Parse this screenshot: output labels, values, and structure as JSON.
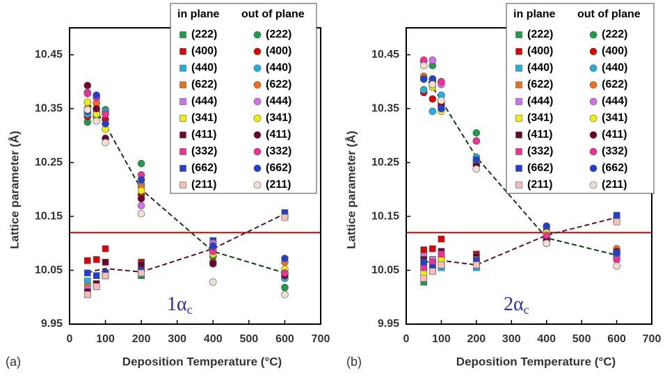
{
  "chart_data": [
    {
      "type": "scatter",
      "panel_label": "(a)",
      "xlabel": "Deposition Temperature (°C)",
      "ylabel": "Lattice parameter (Å)",
      "annotation": {
        "text": "1α",
        "sub": "c"
      },
      "legend_headers": [
        "in plane",
        "out of plane"
      ],
      "xlim": [
        0,
        700
      ],
      "xticks": [
        0,
        100,
        200,
        300,
        400,
        500,
        600,
        700
      ],
      "ylim": [
        9.95,
        10.5
      ],
      "yticks": [
        9.95,
        10.05,
        10.15,
        10.25,
        10.35,
        10.45
      ],
      "x": [
        50,
        75,
        100,
        200,
        400,
        600
      ],
      "reference_line": {
        "value": 10.12,
        "color": "#c00000"
      },
      "trends": [
        {
          "color": "#0b3d0b",
          "values": [
            10.36,
            10.345,
            10.32,
            10.2,
            10.085,
            10.045
          ]
        },
        {
          "color": "#5a1030",
          "values": [
            10.045,
            10.05,
            10.053,
            10.047,
            10.09,
            10.155
          ]
        }
      ],
      "series": [
        {
          "name": "(222)",
          "color": "#1a9e4a",
          "marker": "square",
          "values": [
            10.02,
            10.025,
            10.04,
            10.04,
            10.095,
            10.15
          ]
        },
        {
          "name": "(400)",
          "color": "#e00000",
          "marker": "square",
          "values": [
            10.068,
            10.07,
            10.09,
            10.065,
            10.095,
            10.15
          ]
        },
        {
          "name": "(440)",
          "color": "#1fb0e0",
          "marker": "square",
          "values": [
            10.03,
            10.025,
            10.04,
            10.045,
            10.095,
            10.15
          ]
        },
        {
          "name": "(622)",
          "color": "#f07020",
          "marker": "square",
          "values": [
            10.02,
            10.025,
            10.04,
            10.045,
            10.1,
            10.15
          ]
        },
        {
          "name": "(444)",
          "color": "#d070f0",
          "marker": "square",
          "values": [
            10.015,
            10.02,
            10.04,
            10.05,
            10.1,
            10.15
          ]
        },
        {
          "name": "(341)",
          "color": "#f0f000",
          "marker": "square",
          "values": [
            10.01,
            10.02,
            10.04,
            10.05,
            10.09,
            10.15
          ]
        },
        {
          "name": "(411)",
          "color": "#700030",
          "marker": "square",
          "values": [
            10.01,
            10.025,
            10.065,
            10.06,
            10.095,
            10.15
          ]
        },
        {
          "name": "(332)",
          "color": "#f03098",
          "marker": "square",
          "values": [
            10.005,
            10.02,
            10.045,
            10.05,
            10.1,
            10.15
          ]
        },
        {
          "name": "(662)",
          "color": "#2040d0",
          "marker": "square",
          "values": [
            10.045,
            10.04,
            10.045,
            10.05,
            10.105,
            10.157
          ]
        },
        {
          "name": "(211)",
          "color": "#f5c0b8",
          "marker": "square",
          "values": [
            10.005,
            10.02,
            10.04,
            10.045,
            10.1,
            10.148
          ]
        },
        {
          "name": "(222)",
          "color": "#1a9e4a",
          "marker": "circle",
          "values": [
            10.325,
            10.335,
            10.348,
            10.248,
            10.075,
            10.018
          ]
        },
        {
          "name": "(400)",
          "color": "#e00000",
          "marker": "circle",
          "values": [
            10.335,
            10.34,
            10.33,
            10.19,
            10.065,
            10.04
          ]
        },
        {
          "name": "(440)",
          "color": "#1fb0e0",
          "marker": "circle",
          "values": [
            10.34,
            10.345,
            10.345,
            10.21,
            10.085,
            10.035
          ]
        },
        {
          "name": "(622)",
          "color": "#f07020",
          "marker": "circle",
          "values": [
            10.35,
            10.36,
            10.34,
            10.205,
            10.09,
            10.065
          ]
        },
        {
          "name": "(444)",
          "color": "#d070f0",
          "marker": "circle",
          "values": [
            10.38,
            10.34,
            10.34,
            10.17,
            10.1,
            10.045
          ]
        },
        {
          "name": "(341)",
          "color": "#f0f000",
          "marker": "circle",
          "values": [
            10.362,
            10.34,
            10.312,
            10.198,
            10.08,
            10.052
          ]
        },
        {
          "name": "(411)",
          "color": "#700030",
          "marker": "circle",
          "values": [
            10.393,
            10.35,
            10.295,
            10.183,
            10.062,
            10.04
          ]
        },
        {
          "name": "(332)",
          "color": "#f03098",
          "marker": "circle",
          "values": [
            10.378,
            10.37,
            10.34,
            10.227,
            10.085,
            10.045
          ]
        },
        {
          "name": "(662)",
          "color": "#2040d0",
          "marker": "circle",
          "values": [
            10.345,
            10.375,
            10.322,
            10.218,
            10.095,
            10.072
          ]
        },
        {
          "name": "(211)",
          "color": "#ede0d0",
          "marker": "circle",
          "values": [
            10.348,
            10.327,
            10.287,
            10.155,
            10.028,
            10.005
          ]
        }
      ]
    },
    {
      "type": "scatter",
      "panel_label": "(b)",
      "xlabel": "Deposition Temperature (°C)",
      "ylabel": "Lattice parameter (Å)",
      "annotation": {
        "text": "2α",
        "sub": "c"
      },
      "legend_headers": [
        "in plane",
        "out of plane"
      ],
      "xlim": [
        0,
        700
      ],
      "xticks": [
        0,
        100,
        200,
        300,
        400,
        500,
        600,
        700
      ],
      "ylim": [
        9.95,
        10.5
      ],
      "yticks": [
        9.95,
        10.05,
        10.15,
        10.25,
        10.35,
        10.45
      ],
      "x": [
        50,
        75,
        100,
        200,
        400,
        600
      ],
      "reference_line": {
        "value": 10.12,
        "color": "#c00000"
      },
      "trends": [
        {
          "color": "#0b3d0b",
          "values": [
            10.41,
            10.39,
            10.365,
            10.26,
            10.11,
            10.078
          ]
        },
        {
          "color": "#5a1030",
          "values": [
            10.065,
            10.066,
            10.068,
            10.06,
            10.115,
            10.148
          ]
        }
      ],
      "series": [
        {
          "name": "(222)",
          "color": "#1a9e4a",
          "marker": "square",
          "values": [
            10.028,
            10.05,
            10.058,
            10.058,
            10.115,
            10.145
          ]
        },
        {
          "name": "(400)",
          "color": "#e00000",
          "marker": "square",
          "values": [
            10.088,
            10.09,
            10.108,
            10.08,
            10.12,
            10.145
          ]
        },
        {
          "name": "(440)",
          "color": "#1fb0e0",
          "marker": "square",
          "values": [
            10.065,
            10.05,
            10.055,
            10.055,
            10.115,
            10.145
          ]
        },
        {
          "name": "(622)",
          "color": "#f07020",
          "marker": "square",
          "values": [
            10.06,
            10.07,
            10.07,
            10.065,
            10.12,
            10.145
          ]
        },
        {
          "name": "(444)",
          "color": "#d070f0",
          "marker": "square",
          "values": [
            10.075,
            10.07,
            10.065,
            10.06,
            10.115,
            10.145
          ]
        },
        {
          "name": "(341)",
          "color": "#f0f000",
          "marker": "square",
          "values": [
            10.045,
            10.06,
            10.07,
            10.065,
            10.12,
            10.145
          ]
        },
        {
          "name": "(411)",
          "color": "#700030",
          "marker": "square",
          "values": [
            10.07,
            10.06,
            10.085,
            10.075,
            10.115,
            10.145
          ]
        },
        {
          "name": "(332)",
          "color": "#f03098",
          "marker": "square",
          "values": [
            10.055,
            10.065,
            10.08,
            10.07,
            10.12,
            10.145
          ]
        },
        {
          "name": "(662)",
          "color": "#2040d0",
          "marker": "square",
          "values": [
            10.065,
            10.055,
            10.06,
            10.068,
            10.125,
            10.152
          ]
        },
        {
          "name": "(211)",
          "color": "#f5c0b8",
          "marker": "square",
          "values": [
            10.035,
            10.048,
            10.06,
            10.06,
            10.11,
            10.14
          ]
        },
        {
          "name": "(222)",
          "color": "#1a9e4a",
          "marker": "circle",
          "values": [
            10.405,
            10.43,
            10.4,
            10.305,
            10.1,
            10.08
          ]
        },
        {
          "name": "(400)",
          "color": "#e00000",
          "marker": "circle",
          "values": [
            10.38,
            10.368,
            10.36,
            10.25,
            10.105,
            10.085
          ]
        },
        {
          "name": "(440)",
          "color": "#1fb0e0",
          "marker": "circle",
          "values": [
            10.385,
            10.345,
            10.375,
            10.26,
            10.12,
            10.08
          ]
        },
        {
          "name": "(622)",
          "color": "#f07020",
          "marker": "circle",
          "values": [
            10.41,
            10.4,
            10.365,
            10.245,
            10.11,
            10.09
          ]
        },
        {
          "name": "(444)",
          "color": "#d070f0",
          "marker": "circle",
          "values": [
            10.438,
            10.44,
            10.395,
            10.29,
            10.115,
            10.075
          ]
        },
        {
          "name": "(341)",
          "color": "#f0f000",
          "marker": "circle",
          "values": [
            10.405,
            10.39,
            10.345,
            10.25,
            10.12,
            10.08
          ]
        },
        {
          "name": "(411)",
          "color": "#700030",
          "marker": "circle",
          "values": [
            10.405,
            10.4,
            10.355,
            10.245,
            10.11,
            10.085
          ]
        },
        {
          "name": "(332)",
          "color": "#f03098",
          "marker": "circle",
          "values": [
            10.44,
            10.405,
            10.4,
            10.29,
            10.115,
            10.07
          ]
        },
        {
          "name": "(662)",
          "color": "#2040d0",
          "marker": "circle",
          "values": [
            10.405,
            10.405,
            10.35,
            10.255,
            10.132,
            10.082
          ]
        },
        {
          "name": "(211)",
          "color": "#ede0d0",
          "marker": "circle",
          "values": [
            10.43,
            10.395,
            10.365,
            10.238,
            10.1,
            10.058
          ]
        }
      ]
    }
  ]
}
